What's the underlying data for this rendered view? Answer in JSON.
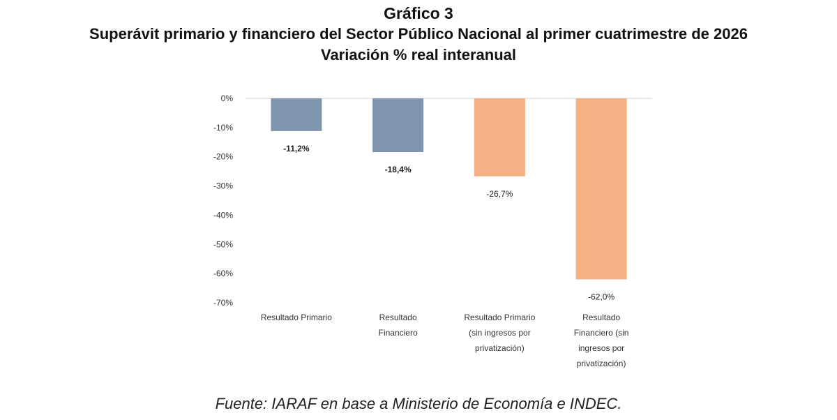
{
  "chart_data": {
    "type": "bar",
    "title": "Gráfico 3",
    "subtitle": "Superávit primario y financiero del Sector Público Nacional al primer cuatrimestre de 2026",
    "subtitle2": "Variación % real interanual",
    "categories": [
      [
        "Resultado Primario"
      ],
      [
        "Resultado",
        "Financiero"
      ],
      [
        "Resultado Primario",
        "(sin ingresos por",
        "privatización)"
      ],
      [
        "Resultado",
        "Financiero (sin",
        "ingresos por",
        "privatización)"
      ]
    ],
    "values": [
      -11.2,
      -18.4,
      -26.7,
      -62.0
    ],
    "data_labels": [
      "-11,2%",
      "-18,4%",
      "-26,7%",
      "-62,0%"
    ],
    "bar_colors": [
      "#8096b0",
      "#8096b0",
      "#f4b183",
      "#f4b183"
    ],
    "data_label_bold": [
      true,
      true,
      false,
      false
    ],
    "yticks": [
      0,
      -10,
      -20,
      -30,
      -40,
      -50,
      -60,
      -70
    ],
    "ytick_labels": [
      "0%",
      "-10%",
      "-20%",
      "-30%",
      "-40%",
      "-50%",
      "-60%",
      "-70%"
    ],
    "ylim": [
      -70,
      0
    ],
    "grid": false,
    "legend": "none",
    "source": "Fuente: IARAF en base a Ministerio de Economía e INDEC."
  }
}
